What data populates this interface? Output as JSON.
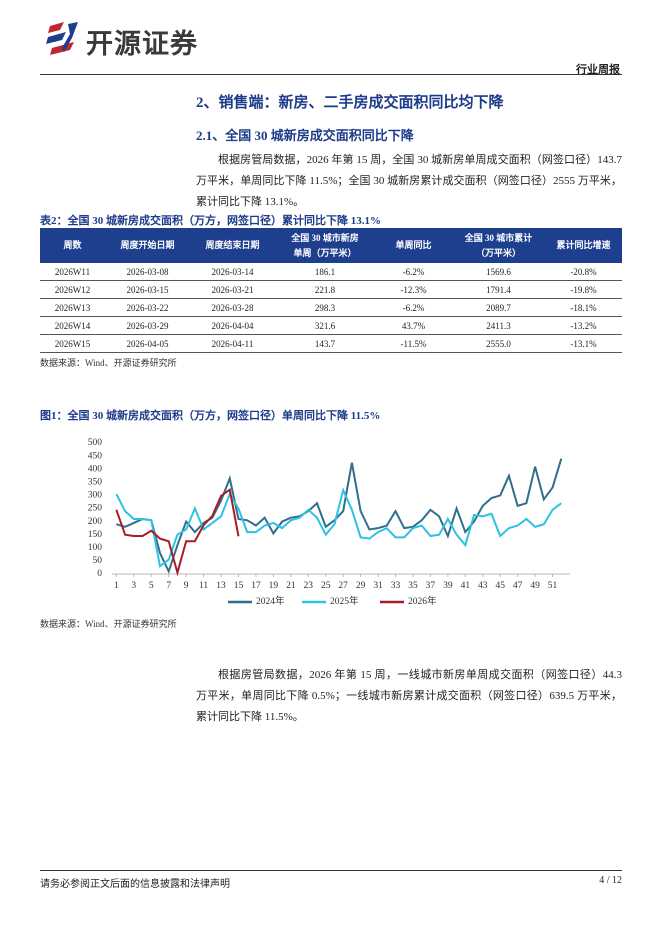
{
  "header": {
    "brand": "开源证券",
    "report_type": "行业周报"
  },
  "section": {
    "title": "2、销售端：新房、二手房成交面积同比均下降",
    "subtitle": "2.1、全国 30 城新房成交面积同比下降",
    "paragraph_1": "根据房管局数据，2026 年第 15 周，全国 30 城新房单周成交面积（网签口径）143.7 万平米，单周同比下降 11.5%；全国 30 城新房累计成交面积（网签口径）2555 万平米，累计同比下降 13.1%。",
    "paragraph_2": "根据房管局数据，2026 年第 15 周，一线城市新房单周成交面积（网签口径）44.3 万平米，单周同比下降 0.5%；一线城市新房累计成交面积（网签口径）639.5 万平米，累计同比下降 11.5%。"
  },
  "table": {
    "caption": "表2：全国 30 城新房成交面积（万方，网签口径）累计同比下降 13.1%",
    "header": [
      "周数",
      "周度开始日期",
      "周度结束日期",
      [
        "全国 30 城市新房",
        "单周（万平米）"
      ],
      "单周同比",
      [
        "全国 30 城市累计",
        "（万平米）"
      ],
      "累计同比增速"
    ],
    "rows": [
      [
        "2026W11",
        "2026-03-08",
        "2026-03-14",
        "186.1",
        "-6.2%",
        "1569.6",
        "-20.8%"
      ],
      [
        "2026W12",
        "2026-03-15",
        "2026-03-21",
        "221.8",
        "-12.3%",
        "1791.4",
        "-19.8%"
      ],
      [
        "2026W13",
        "2026-03-22",
        "2026-03-28",
        "298.3",
        "-6.2%",
        "2089.7",
        "-18.1%"
      ],
      [
        "2026W14",
        "2026-03-29",
        "2026-04-04",
        "321.6",
        "43.7%",
        "2411.3",
        "-13.2%"
      ],
      [
        "2026W15",
        "2026-04-05",
        "2026-04-11",
        "143.7",
        "-11.5%",
        "2555.0",
        "-13.1%"
      ]
    ],
    "source": "数据来源：Wind、开源证券研究所"
  },
  "chart_data": {
    "type": "line",
    "title": "图1：全国 30 城新房成交面积（万方，网签口径）单周同比下降 11.5%",
    "x": [
      1,
      2,
      3,
      4,
      5,
      6,
      7,
      8,
      9,
      10,
      11,
      12,
      13,
      14,
      15,
      16,
      17,
      18,
      19,
      20,
      21,
      22,
      23,
      24,
      25,
      26,
      27,
      28,
      29,
      30,
      31,
      32,
      33,
      34,
      35,
      36,
      37,
      38,
      39,
      40,
      41,
      42,
      43,
      44,
      45,
      46,
      47,
      48,
      49,
      50,
      51,
      52
    ],
    "xlim": [
      0.5,
      53
    ],
    "xticks": [
      1,
      3,
      5,
      7,
      9,
      11,
      13,
      15,
      17,
      19,
      21,
      23,
      25,
      27,
      29,
      31,
      33,
      35,
      37,
      39,
      41,
      43,
      45,
      47,
      49,
      51
    ],
    "ylim": [
      0,
      500
    ],
    "yticks": [
      0,
      50,
      100,
      150,
      200,
      250,
      300,
      350,
      400,
      450,
      500
    ],
    "series": [
      {
        "name": "2024年",
        "color": "#2f6f8c",
        "values": [
          190,
          180,
          195,
          210,
          205,
          80,
          10,
          110,
          200,
          160,
          195,
          215,
          280,
          365,
          210,
          205,
          185,
          215,
          155,
          200,
          215,
          220,
          240,
          270,
          180,
          205,
          240,
          425,
          240,
          170,
          175,
          185,
          240,
          175,
          180,
          205,
          245,
          220,
          145,
          250,
          160,
          200,
          260,
          290,
          300,
          375,
          260,
          270,
          410,
          285,
          330,
          440
        ]
      },
      {
        "name": "2025年",
        "color": "#2fc1e4",
        "values": [
          305,
          240,
          210,
          210,
          205,
          30,
          55,
          150,
          170,
          250,
          170,
          195,
          220,
          305,
          250,
          160,
          160,
          185,
          195,
          175,
          205,
          215,
          245,
          215,
          150,
          190,
          320,
          245,
          140,
          135,
          160,
          175,
          140,
          140,
          175,
          185,
          145,
          150,
          210,
          150,
          110,
          225,
          220,
          230,
          145,
          175,
          185,
          210,
          180,
          190,
          245,
          270
        ]
      },
      {
        "name": "2026年",
        "color": "#a81c26",
        "values": [
          245,
          150,
          145,
          145,
          165,
          135,
          125,
          5,
          125,
          125,
          186.1,
          221.8,
          298.3,
          321.6,
          143.7,
          null,
          null,
          null,
          null,
          null,
          null,
          null,
          null,
          null,
          null,
          null,
          null,
          null,
          null,
          null,
          null,
          null,
          null,
          null,
          null,
          null,
          null,
          null,
          null,
          null,
          null,
          null,
          null,
          null,
          null,
          null,
          null,
          null,
          null,
          null,
          null,
          null
        ]
      }
    ],
    "source": "数据来源：Wind、开源证券研究所"
  },
  "footer": {
    "disclaimer": "请务必参阅正文后面的信息披露和法律声明",
    "page": "4 / 12"
  }
}
